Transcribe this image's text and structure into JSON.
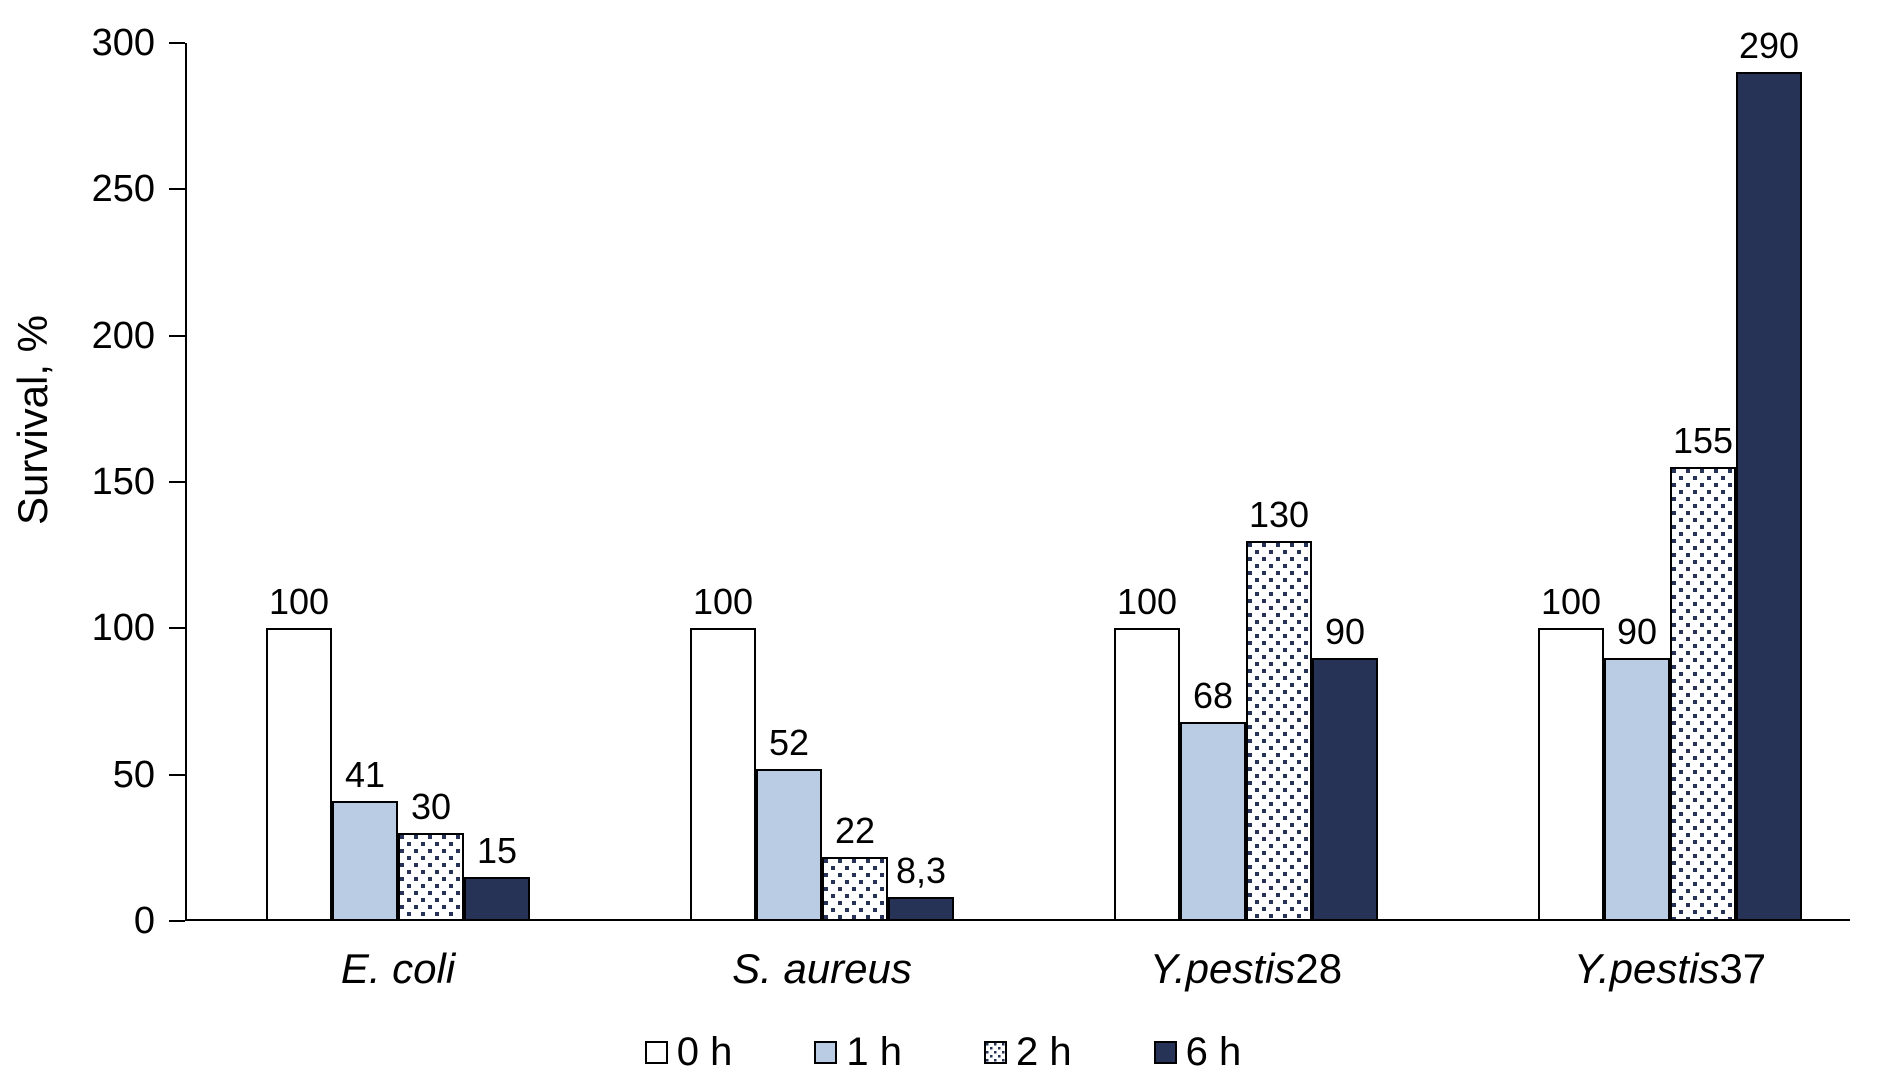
{
  "chart_data": {
    "type": "bar",
    "title": "",
    "xlabel": "",
    "ylabel": "Survival, %",
    "ylim": [
      0,
      300
    ],
    "yticks": [
      0,
      50,
      100,
      150,
      200,
      250,
      300
    ],
    "grid": false,
    "legend_position": "bottom",
    "categories": [
      {
        "italic": "E. coli",
        "plain": ""
      },
      {
        "italic": "S. aureus",
        "plain": ""
      },
      {
        "italic": "Y.pestis",
        "plain": "28"
      },
      {
        "italic": "Y.pestis",
        "plain": "37"
      }
    ],
    "series": [
      {
        "name": "0 h",
        "pattern": "solid",
        "fill": "#FFFFFF",
        "values": [
          100,
          100,
          100,
          100
        ],
        "labels": [
          "100",
          "100",
          "100",
          "100"
        ]
      },
      {
        "name": "1 h",
        "pattern": "solid",
        "fill": "#B9CCE4",
        "values": [
          41,
          52,
          68,
          90
        ],
        "labels": [
          "41",
          "52",
          "68",
          "90"
        ]
      },
      {
        "name": "2 h",
        "pattern": "dots",
        "fill": "#FFFFFF",
        "dot_color": "#263256",
        "values": [
          30,
          22,
          130,
          155
        ],
        "labels": [
          "30",
          "22",
          "130",
          "155"
        ]
      },
      {
        "name": "6 h",
        "pattern": "solid",
        "fill": "#263256",
        "values": [
          15,
          8.3,
          90,
          290
        ],
        "labels": [
          "15",
          "8,3",
          "90",
          "290"
        ]
      }
    ],
    "colors": {
      "axis": "#000000",
      "bar_border": "#000000",
      "light_blue": "#B9CCE4",
      "dark_navy": "#263256",
      "background": "#FFFFFF"
    }
  }
}
